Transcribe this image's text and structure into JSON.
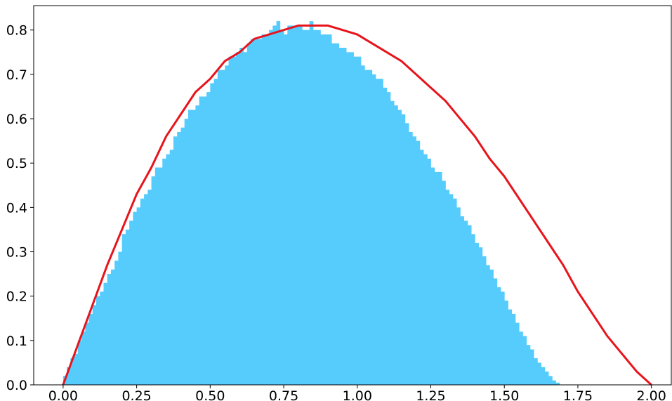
{
  "chart_data": {
    "type": "bar",
    "description_series": [
      {
        "kind": "histogram"
      },
      {
        "kind": "density-curve"
      }
    ],
    "xlim": [
      -0.1,
      2.07
    ],
    "ylim": [
      0.0,
      0.855
    ],
    "x_ticks": [
      "0.00",
      "0.25",
      "0.50",
      "0.75",
      "1.00",
      "1.25",
      "1.50",
      "1.75",
      "2.00"
    ],
    "x_tick_values": [
      0.0,
      0.25,
      0.5,
      0.75,
      1.0,
      1.25,
      1.5,
      1.75,
      2.0
    ],
    "y_ticks": [
      "0.0",
      "0.1",
      "0.2",
      "0.3",
      "0.4",
      "0.5",
      "0.6",
      "0.7",
      "0.8"
    ],
    "y_tick_values": [
      0.0,
      0.1,
      0.2,
      0.3,
      0.4,
      0.5,
      0.6,
      0.7,
      0.8
    ],
    "histogram": {
      "color": "#56ccfd",
      "bin_width": 0.0125,
      "x_start": 0.0,
      "heights": [
        0.02,
        0.04,
        0.06,
        0.07,
        0.1,
        0.12,
        0.14,
        0.16,
        0.18,
        0.2,
        0.21,
        0.23,
        0.25,
        0.26,
        0.28,
        0.3,
        0.34,
        0.35,
        0.37,
        0.39,
        0.4,
        0.42,
        0.43,
        0.44,
        0.47,
        0.49,
        0.49,
        0.51,
        0.52,
        0.53,
        0.56,
        0.57,
        0.58,
        0.6,
        0.62,
        0.62,
        0.63,
        0.65,
        0.65,
        0.66,
        0.68,
        0.69,
        0.71,
        0.71,
        0.72,
        0.74,
        0.74,
        0.75,
        0.76,
        0.75,
        0.77,
        0.78,
        0.78,
        0.78,
        0.79,
        0.79,
        0.8,
        0.81,
        0.82,
        0.8,
        0.79,
        0.81,
        0.81,
        0.81,
        0.81,
        0.8,
        0.8,
        0.82,
        0.8,
        0.8,
        0.79,
        0.79,
        0.79,
        0.77,
        0.77,
        0.76,
        0.76,
        0.75,
        0.75,
        0.74,
        0.74,
        0.72,
        0.71,
        0.71,
        0.7,
        0.69,
        0.69,
        0.67,
        0.66,
        0.64,
        0.63,
        0.62,
        0.61,
        0.59,
        0.57,
        0.56,
        0.55,
        0.53,
        0.52,
        0.51,
        0.49,
        0.48,
        0.48,
        0.46,
        0.44,
        0.43,
        0.42,
        0.4,
        0.38,
        0.37,
        0.36,
        0.34,
        0.32,
        0.31,
        0.29,
        0.27,
        0.26,
        0.24,
        0.22,
        0.21,
        0.19,
        0.17,
        0.16,
        0.14,
        0.12,
        0.11,
        0.09,
        0.08,
        0.06,
        0.05,
        0.04,
        0.03,
        0.02,
        0.01,
        0.005,
        0.0
      ]
    },
    "curve": {
      "color": "#e8141c",
      "x": [
        0.0,
        0.05,
        0.1,
        0.15,
        0.2,
        0.25,
        0.3,
        0.35,
        0.4,
        0.45,
        0.5,
        0.55,
        0.6,
        0.65,
        0.7,
        0.75,
        0.8,
        0.85,
        0.9,
        0.95,
        1.0,
        1.05,
        1.1,
        1.15,
        1.2,
        1.25,
        1.3,
        1.35,
        1.4,
        1.45,
        1.5,
        1.55,
        1.6,
        1.65,
        1.7,
        1.75,
        1.8,
        1.85,
        1.9,
        1.95,
        2.0
      ],
      "y": [
        0.0,
        0.09,
        0.18,
        0.27,
        0.35,
        0.43,
        0.49,
        0.56,
        0.61,
        0.66,
        0.69,
        0.73,
        0.75,
        0.78,
        0.79,
        0.8,
        0.81,
        0.81,
        0.81,
        0.8,
        0.79,
        0.77,
        0.75,
        0.73,
        0.7,
        0.67,
        0.64,
        0.6,
        0.56,
        0.51,
        0.47,
        0.42,
        0.37,
        0.32,
        0.27,
        0.21,
        0.16,
        0.11,
        0.07,
        0.03,
        0.0
      ]
    }
  }
}
